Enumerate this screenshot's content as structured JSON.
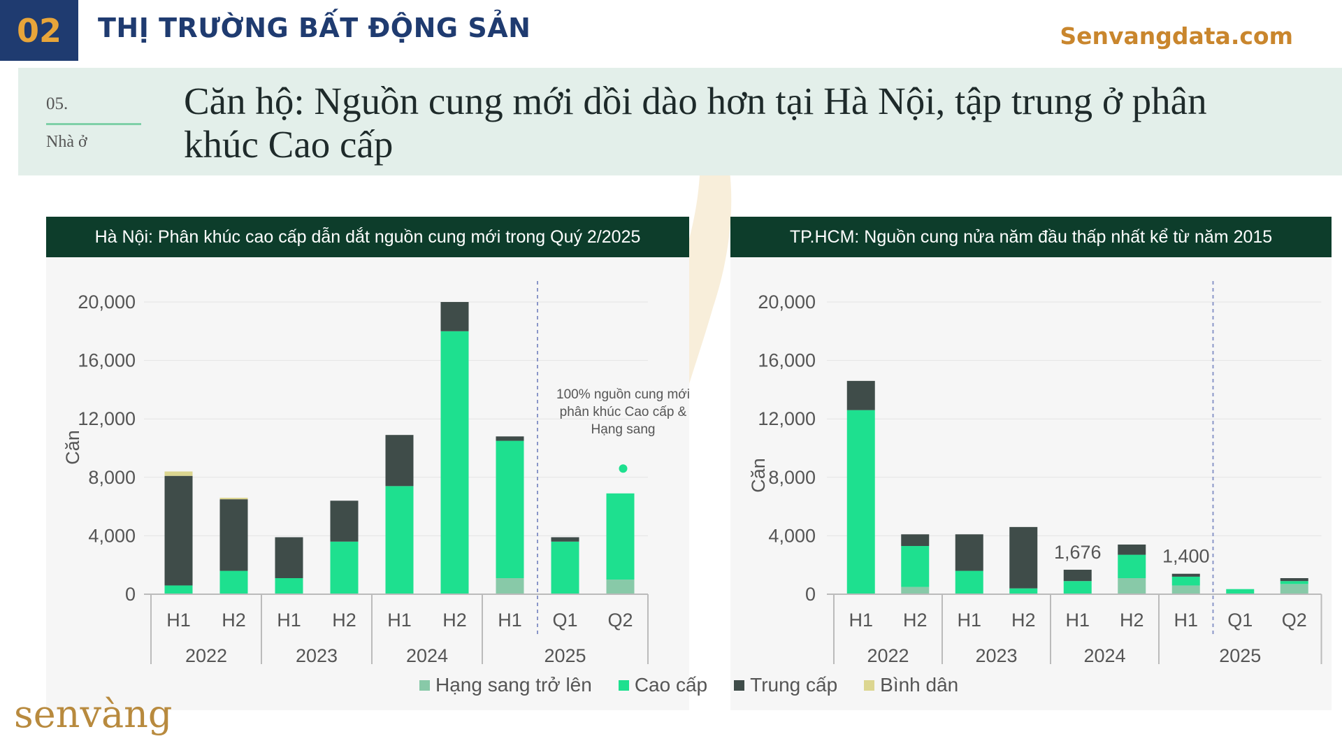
{
  "header": {
    "number": "02",
    "title": "THỊ TRƯỜNG BẤT ĐỘNG SẢN",
    "site": "Senvangdata.com"
  },
  "section": {
    "number": "05.",
    "label": "Nhà ở",
    "title": "Căn hộ: Nguồn cung mới dồi dào hơn tại Hà Nội, tập trung ở phân khúc Cao cấp"
  },
  "brand": "senvàng",
  "legend": [
    {
      "name": "Hạng sang trở lên",
      "color": "#88c9a8"
    },
    {
      "name": "Cao cấp",
      "color": "#1ee08f"
    },
    {
      "name": "Trung cấp",
      "color": "#3f4c49"
    },
    {
      "name": "Bình dân",
      "color": "#dcd690"
    }
  ],
  "chart_data": [
    {
      "type": "bar",
      "stacked": true,
      "title": "Hà Nội: Phân khúc cao cấp dẫn dắt nguồn cung mới trong Quý 2/2025",
      "ylabel": "Căn",
      "ylim": [
        0,
        20000
      ],
      "yticks": [
        "0",
        "4,000",
        "8,000",
        "12,000",
        "16,000",
        "20,000"
      ],
      "categories": [
        "H1",
        "H2",
        "H1",
        "H2",
        "H1",
        "H2",
        "H1",
        "Q1",
        "Q2"
      ],
      "year_groups": [
        {
          "label": "2022",
          "count": 2
        },
        {
          "label": "2023",
          "count": 2
        },
        {
          "label": "2024",
          "count": 2
        },
        {
          "label": "2025",
          "count": 3
        }
      ],
      "separator_after_index": 6,
      "series": [
        {
          "name": "Hạng sang trở lên",
          "values": [
            0,
            0,
            0,
            0,
            0,
            0,
            1100,
            0,
            1000
          ]
        },
        {
          "name": "Cao cấp",
          "values": [
            600,
            1600,
            1100,
            3600,
            7400,
            18000,
            9400,
            3600,
            5900
          ]
        },
        {
          "name": "Trung cấp",
          "values": [
            7500,
            4900,
            2800,
            2800,
            3500,
            2000,
            300,
            300,
            0
          ]
        },
        {
          "name": "Bình dân",
          "values": [
            300,
            100,
            0,
            0,
            0,
            0,
            0,
            0,
            0
          ]
        }
      ],
      "annotation": {
        "text": [
          "100% nguồn cung mới",
          "phân khúc Cao cấp &",
          "Hạng sang"
        ],
        "category_index": 8,
        "dot_value": 8600
      }
    },
    {
      "type": "bar",
      "stacked": true,
      "title": "TP.HCM: Nguồn cung nửa năm đầu thấp nhất kể từ năm 2015",
      "ylabel": "Căn",
      "ylim": [
        0,
        20000
      ],
      "yticks": [
        "0",
        "4,000",
        "8,000",
        "12,000",
        "16,000",
        "20,000"
      ],
      "categories": [
        "H1",
        "H2",
        "H1",
        "H2",
        "H1",
        "H2",
        "H1",
        "Q1",
        "Q2"
      ],
      "year_groups": [
        {
          "label": "2022",
          "count": 2
        },
        {
          "label": "2023",
          "count": 2
        },
        {
          "label": "2024",
          "count": 2
        },
        {
          "label": "2025",
          "count": 3
        }
      ],
      "separator_after_index": 6,
      "series": [
        {
          "name": "Hạng sang trở lên",
          "values": [
            0,
            500,
            0,
            0,
            0,
            1100,
            600,
            0,
            700
          ]
        },
        {
          "name": "Cao cấp",
          "values": [
            12600,
            2800,
            1600,
            400,
            900,
            1600,
            600,
            350,
            200
          ]
        },
        {
          "name": "Trung cấp",
          "values": [
            2000,
            800,
            2500,
            4200,
            776,
            700,
            200,
            0,
            200
          ]
        },
        {
          "name": "Bình dân",
          "values": [
            0,
            0,
            0,
            0,
            0,
            0,
            0,
            0,
            0
          ]
        }
      ],
      "data_labels": [
        {
          "index": 4,
          "text": "1,676"
        },
        {
          "index": 6,
          "text": "1,400"
        }
      ]
    }
  ]
}
